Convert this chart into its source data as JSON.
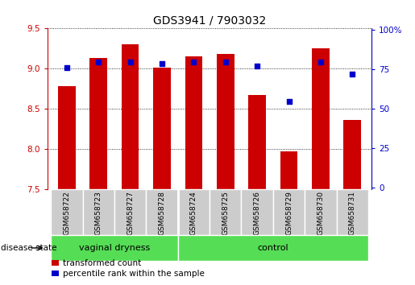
{
  "title": "GDS3941 / 7903032",
  "samples": [
    "GSM658722",
    "GSM658723",
    "GSM658727",
    "GSM658728",
    "GSM658724",
    "GSM658725",
    "GSM658726",
    "GSM658729",
    "GSM658730",
    "GSM658731"
  ],
  "transformed_count": [
    8.78,
    9.13,
    9.3,
    9.01,
    9.15,
    9.18,
    8.67,
    7.97,
    9.25,
    8.36
  ],
  "percentile_rank": [
    76,
    80,
    80,
    79,
    80,
    80,
    77,
    55,
    80,
    72
  ],
  "ylim": [
    7.5,
    9.5
  ],
  "yticks_left": [
    7.5,
    8.0,
    8.5,
    9.0,
    9.5
  ],
  "yticks_right": [
    0,
    25,
    50,
    75,
    100
  ],
  "bar_color": "#cc0000",
  "dot_color": "#0000cc",
  "group1_label": "vaginal dryness",
  "group2_label": "control",
  "group1_count": 4,
  "group2_count": 6,
  "group_bg_color": "#55dd55",
  "sample_bg_color": "#cccccc",
  "legend_bar_label": "transformed count",
  "legend_dot_label": "percentile rank within the sample",
  "disease_state_label": "disease state",
  "bar_width": 0.55,
  "figsize": [
    5.15,
    3.54
  ],
  "dpi": 100
}
